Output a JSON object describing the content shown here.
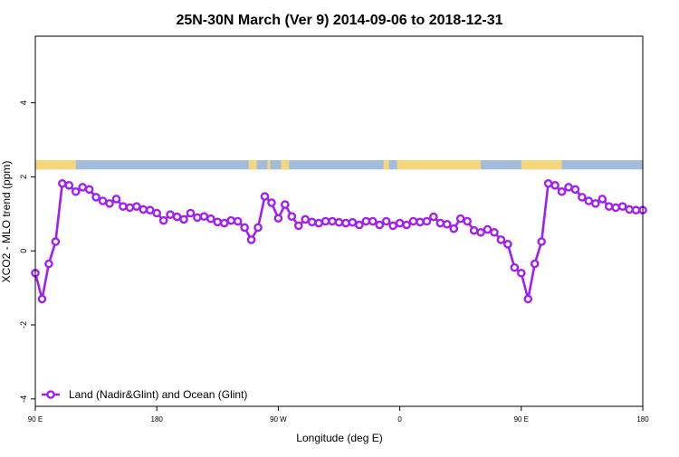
{
  "chart_data": {
    "type": "line",
    "title": "25N-30N March (Ver 9)   2014-09-06 to 2018-12-31",
    "xlabel": "Longitude (deg E)",
    "ylabel": "XCO2 - MLO trend (ppm)",
    "xlim": [
      0,
      450
    ],
    "ylim": [
      -4.2,
      5.8
    ],
    "xticks": [
      {
        "value": 0,
        "label": "90 E"
      },
      {
        "value": 90,
        "label": "180"
      },
      {
        "value": 180,
        "label": "90 W"
      },
      {
        "value": 270,
        "label": "0"
      },
      {
        "value": 360,
        "label": "90 E"
      },
      {
        "value": 450,
        "label": "180"
      }
    ],
    "yticks": [
      {
        "value": -4,
        "label": "-4"
      },
      {
        "value": -2,
        "label": "-2"
      },
      {
        "value": 0,
        "label": "0"
      },
      {
        "value": 2,
        "label": "2"
      },
      {
        "value": 4,
        "label": "4"
      }
    ],
    "legend_position": "bottom-left",
    "series": [
      {
        "name": "Land (Nadir&Glint) and Ocean (Glint)",
        "color": "#a020f0",
        "x": [
          0,
          5,
          10,
          15,
          20,
          25,
          30,
          35,
          40,
          45,
          50,
          55,
          60,
          65,
          70,
          75,
          80,
          85,
          90,
          95,
          100,
          105,
          110,
          115,
          120,
          125,
          130,
          135,
          140,
          145,
          150,
          155,
          160,
          165,
          170,
          175,
          180,
          185,
          190,
          195,
          200,
          205,
          210,
          215,
          220,
          225,
          230,
          235,
          240,
          245,
          250,
          255,
          260,
          265,
          270,
          275,
          280,
          285,
          290,
          295,
          300,
          305,
          310,
          315,
          320,
          325,
          330,
          335,
          340,
          345,
          350,
          355,
          360,
          365,
          370,
          375,
          380,
          385,
          390,
          395,
          400,
          405,
          410,
          415,
          420,
          425,
          430,
          435,
          440,
          445,
          450
        ],
        "y": [
          -0.6,
          -1.3,
          -0.35,
          0.25,
          1.82,
          1.77,
          1.6,
          1.72,
          1.66,
          1.45,
          1.35,
          1.28,
          1.4,
          1.2,
          1.17,
          1.2,
          1.12,
          1.1,
          1.02,
          0.82,
          0.98,
          0.92,
          0.85,
          1.02,
          0.9,
          0.93,
          0.87,
          0.78,
          0.75,
          0.82,
          0.8,
          0.63,
          0.3,
          0.63,
          1.47,
          1.3,
          0.88,
          1.25,
          0.93,
          0.68,
          0.85,
          0.78,
          0.75,
          0.8,
          0.8,
          0.77,
          0.75,
          0.77,
          0.7,
          0.8,
          0.8,
          0.7,
          0.8,
          0.68,
          0.75,
          0.7,
          0.8,
          0.78,
          0.8,
          0.92,
          0.75,
          0.72,
          0.6,
          0.87,
          0.8,
          0.55,
          0.5,
          0.58,
          0.5,
          0.3,
          0.18,
          -0.45,
          -0.6,
          -1.3,
          -0.35,
          0.25,
          1.82,
          1.77,
          1.6,
          1.72,
          1.66,
          1.45,
          1.35,
          1.28,
          1.4,
          1.2,
          1.17,
          1.2,
          1.12,
          1.1,
          1.1
        ]
      }
    ],
    "land_ocean_strip": {
      "y_range": [
        2.2,
        2.45
      ],
      "ocean_color": "#a4bcdc",
      "land_color": "#f5d67a",
      "land_segments": [
        [
          0,
          30
        ],
        [
          158,
          164
        ],
        [
          172,
          174
        ],
        [
          182,
          188
        ],
        [
          258,
          262
        ],
        [
          268,
          330
        ],
        [
          360,
          390
        ]
      ]
    }
  }
}
